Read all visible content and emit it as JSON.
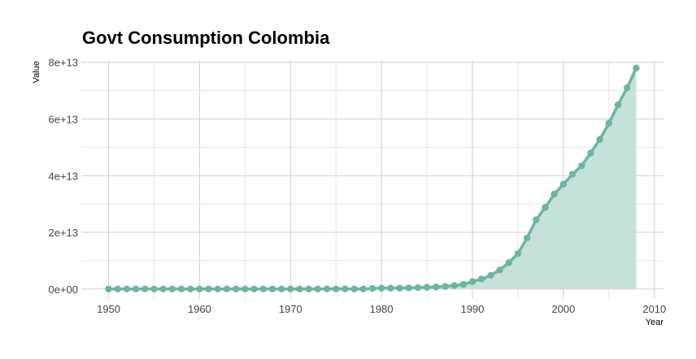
{
  "chart_data": {
    "type": "area",
    "title": "Govt Consumption Colombia",
    "xlabel": "Year",
    "ylabel": "Value",
    "xlim": [
      1947,
      2011
    ],
    "ylim": [
      -3500000000000,
      80500000000000
    ],
    "x_ticks": [
      1950,
      1960,
      1970,
      1980,
      1990,
      2000,
      2010
    ],
    "x_tick_labels": [
      "1950",
      "1960",
      "1970",
      "1980",
      "1990",
      "2000",
      "2010"
    ],
    "y_ticks": [
      0,
      20000000000000,
      40000000000000,
      60000000000000,
      80000000000000
    ],
    "y_tick_labels": [
      "0e+00",
      "2e+13",
      "4e+13",
      "6e+13",
      "8e+13"
    ],
    "grid": true,
    "line_color": "#6cb5a1",
    "fill_color": "#c5e2db",
    "x": [
      1950,
      1951,
      1952,
      1953,
      1954,
      1955,
      1956,
      1957,
      1958,
      1959,
      1960,
      1961,
      1962,
      1963,
      1964,
      1965,
      1966,
      1967,
      1968,
      1969,
      1970,
      1971,
      1972,
      1973,
      1974,
      1975,
      1976,
      1977,
      1978,
      1979,
      1980,
      1981,
      1982,
      1983,
      1984,
      1985,
      1986,
      1987,
      1988,
      1989,
      1990,
      1991,
      1992,
      1993,
      1994,
      1995,
      1996,
      1997,
      1998,
      1999,
      2000,
      2001,
      2002,
      2003,
      2004,
      2005,
      2006,
      2007,
      2008
    ],
    "values": [
      0,
      0,
      0,
      0,
      0,
      0,
      0,
      0,
      0,
      0,
      0,
      0,
      0,
      0,
      0,
      0,
      0,
      0,
      0,
      0,
      0,
      0,
      0,
      0,
      0,
      0,
      0,
      0,
      0,
      200000000000,
      300000000000,
      300000000000,
      300000000000,
      400000000000,
      500000000000,
      600000000000,
      700000000000,
      900000000000,
      1200000000000,
      1600000000000,
      2600000000000,
      3500000000000,
      4800000000000,
      6700000000000,
      9300000000000,
      12500000000000,
      18000000000000,
      24400000000000,
      28800000000000,
      33500000000000,
      37000000000000,
      40500000000000,
      43500000000000,
      48000000000000,
      52800000000000,
      58500000000000,
      65000000000000,
      71000000000000,
      78000000000000
    ]
  }
}
